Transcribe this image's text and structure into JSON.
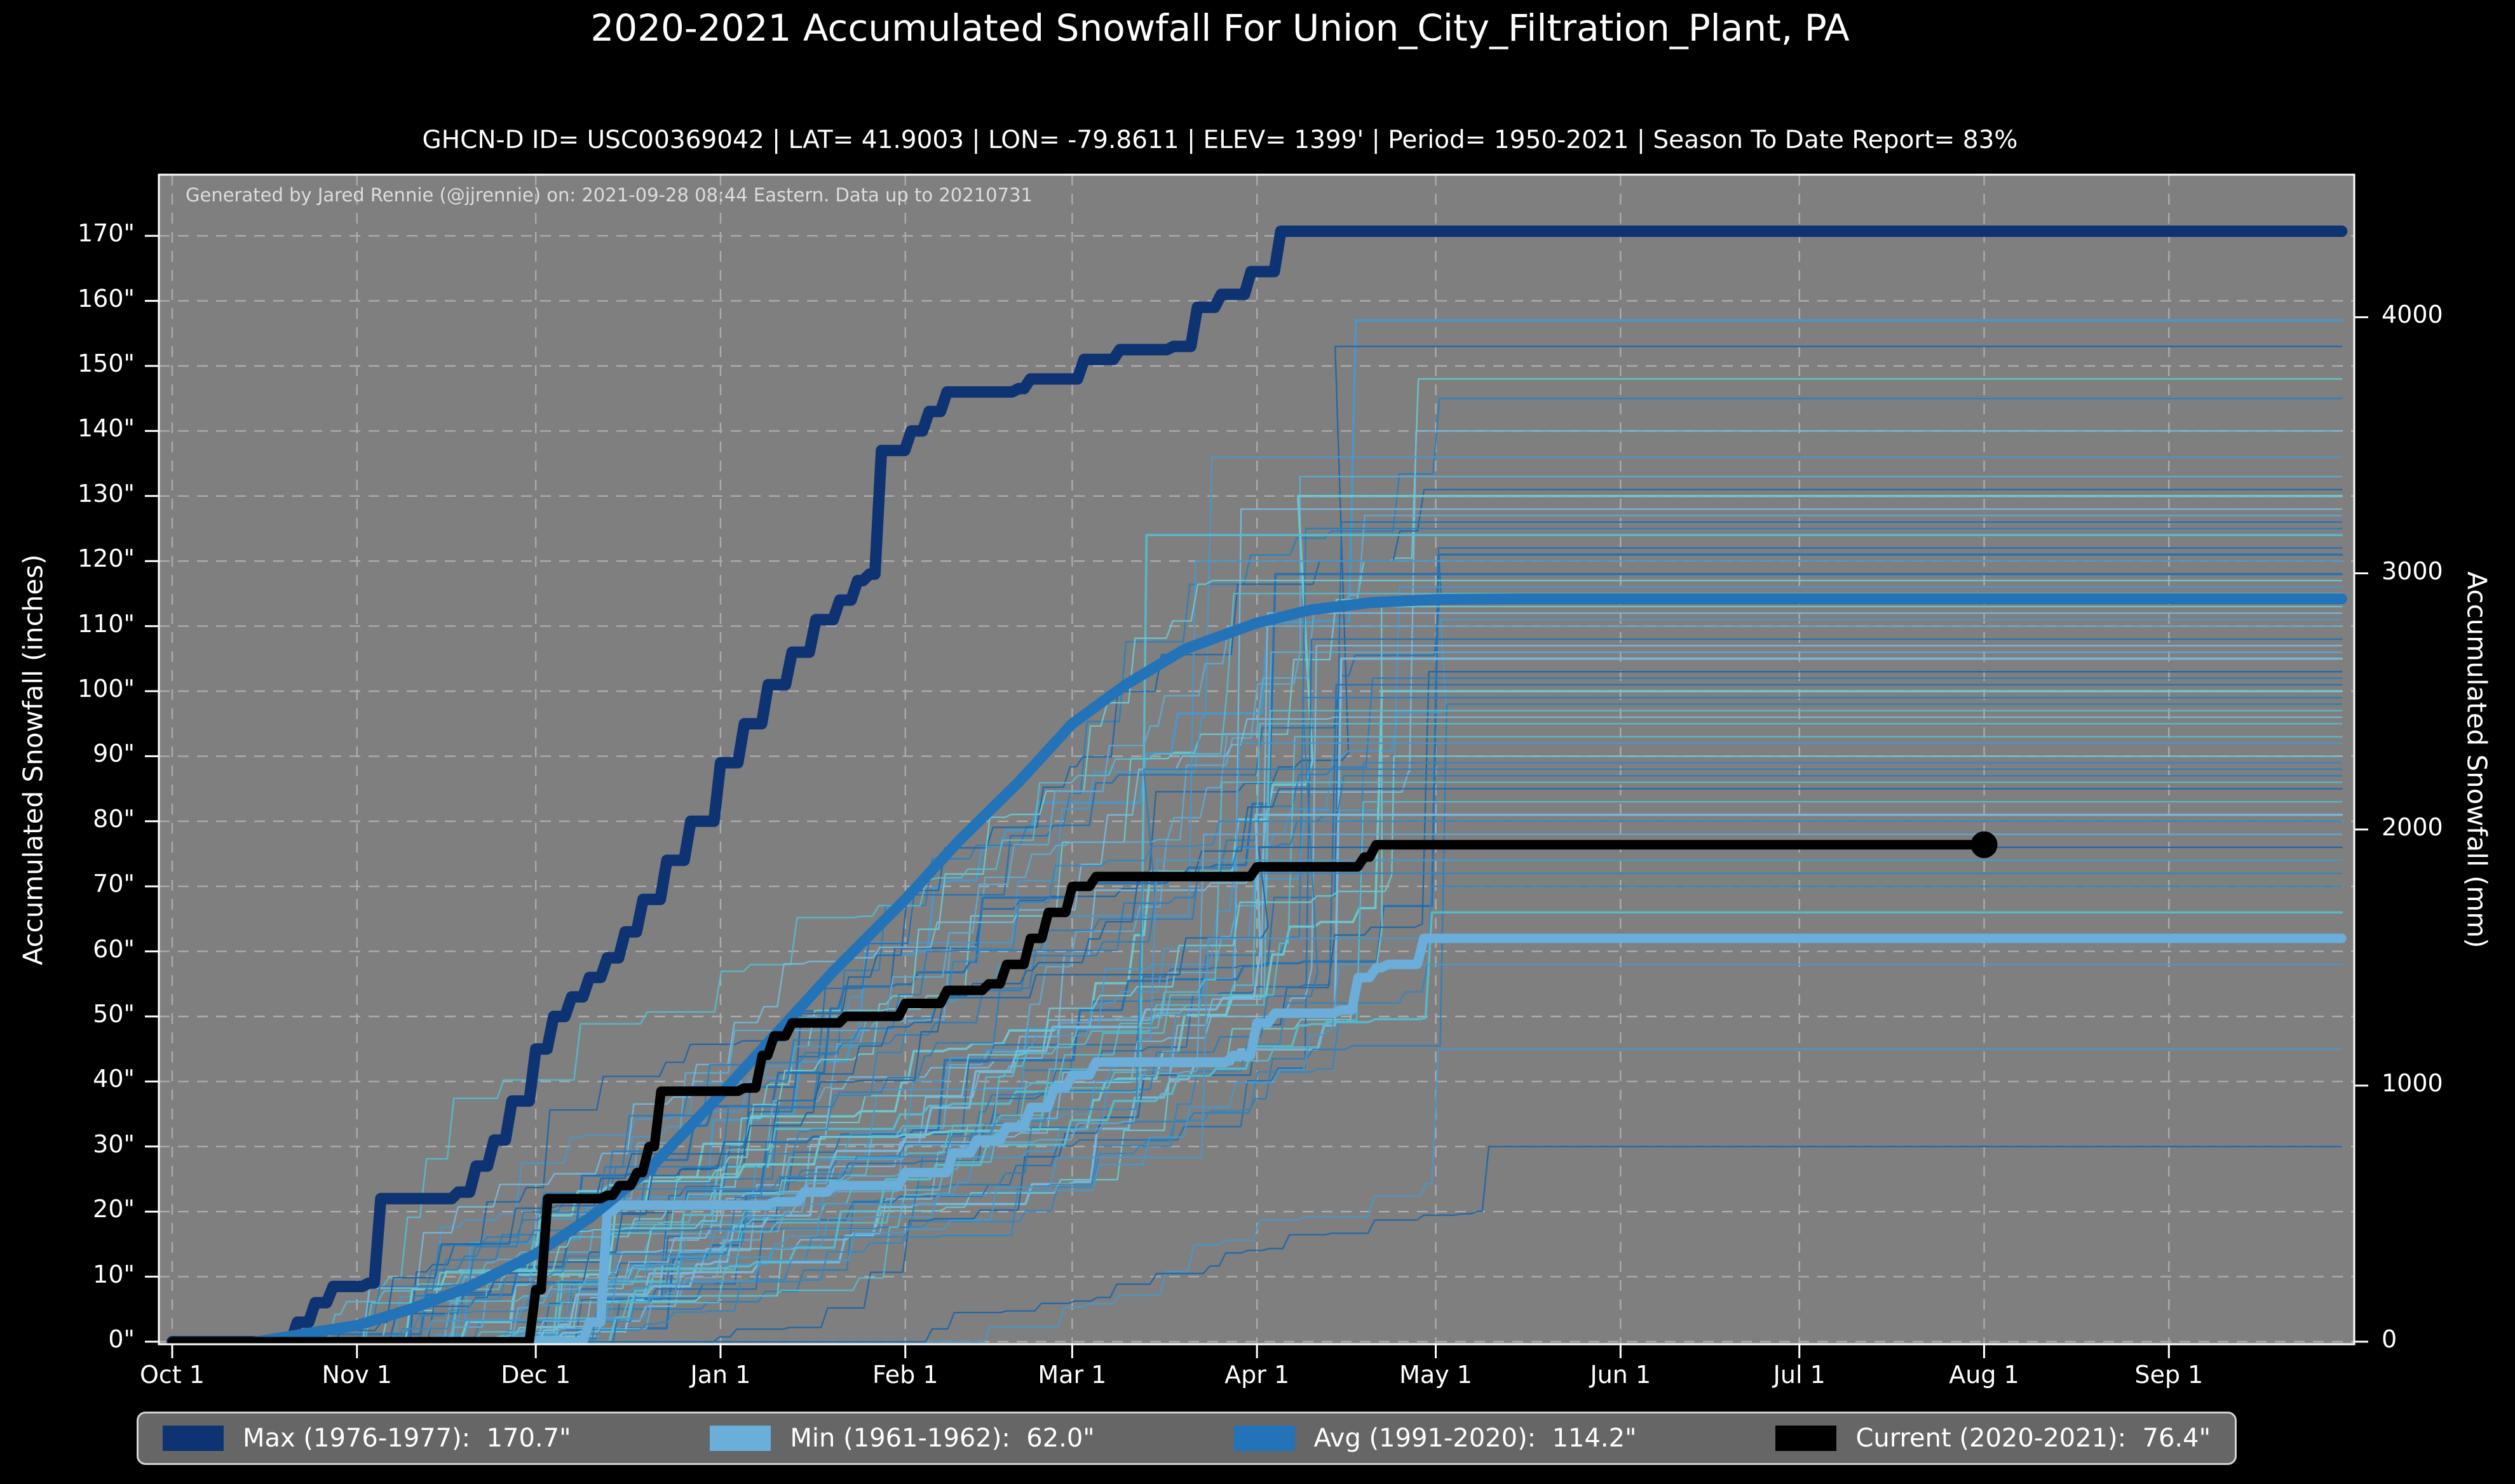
{
  "title": "2020-2021 Accumulated Snowfall For Union_City_Filtration_Plant, PA",
  "subtitle": "GHCN-D ID= USC00369042 | LAT= 41.9003 | LON= -79.8611 | ELEV= 1399' | Period= 1950-2021 | Season To Date Report= 83%",
  "attribution": "Generated by Jared Rennie (@jjrennie) on: 2021-09-28 08:44 Eastern. Data up to 20210731",
  "colors": {
    "figure_background": "#000000",
    "plot_background": "#7f7f7f",
    "grid": "#cfcfcf",
    "spine": "#ffffff",
    "max_line": "#0e3372",
    "min_line": "#6aaed9",
    "avg_line": "#2273b8",
    "current_line": "#000000",
    "legend_background": "#666667"
  },
  "chart_data": {
    "type": "line",
    "title": "2020-2021 Accumulated Snowfall For Union_City_Filtration_Plant, PA",
    "ylabel_left": "Accumulated Snowfall (inches)",
    "ylabel_right": "Accumulated Snowfall (mm)",
    "x_ticks": [
      {
        "label": "Oct 1",
        "day": 0
      },
      {
        "label": "Nov 1",
        "day": 31
      },
      {
        "label": "Dec 1",
        "day": 61
      },
      {
        "label": "Jan 1",
        "day": 92
      },
      {
        "label": "Feb 1",
        "day": 123
      },
      {
        "label": "Mar 1",
        "day": 151
      },
      {
        "label": "Apr 1",
        "day": 182
      },
      {
        "label": "May 1",
        "day": 212
      },
      {
        "label": "Jun 1",
        "day": 243
      },
      {
        "label": "Jul 1",
        "day": 273
      },
      {
        "label": "Aug 1",
        "day": 304
      },
      {
        "label": "Sep 1",
        "day": 335
      }
    ],
    "y_ticks_left": [
      {
        "value": 0,
        "label": "0\""
      },
      {
        "value": 10,
        "label": "10\""
      },
      {
        "value": 20,
        "label": "20\""
      },
      {
        "value": 30,
        "label": "30\""
      },
      {
        "value": 40,
        "label": "40\""
      },
      {
        "value": 50,
        "label": "50\""
      },
      {
        "value": 60,
        "label": "60\""
      },
      {
        "value": 70,
        "label": "70\""
      },
      {
        "value": 80,
        "label": "80\""
      },
      {
        "value": 90,
        "label": "90\""
      },
      {
        "value": 100,
        "label": "100\""
      },
      {
        "value": 110,
        "label": "110\""
      },
      {
        "value": 120,
        "label": "120\""
      },
      {
        "value": 130,
        "label": "130\""
      },
      {
        "value": 140,
        "label": "140\""
      },
      {
        "value": 150,
        "label": "150\""
      },
      {
        "value": 160,
        "label": "160\""
      },
      {
        "value": 170,
        "label": "170\""
      }
    ],
    "y_ticks_right": [
      {
        "value": 0,
        "label": "0"
      },
      {
        "value": 1000,
        "label": "1000"
      },
      {
        "value": 2000,
        "label": "2000"
      },
      {
        "value": 3000,
        "label": "3000"
      },
      {
        "value": 4000,
        "label": "4000"
      }
    ],
    "x_range_days": [
      0,
      365
    ],
    "y_range_inches": [
      0,
      179
    ],
    "grid": "dashed",
    "legend_position": "bottom",
    "legend": [
      {
        "label": "Max (1976-1977):  170.7\"",
        "color": "#0e3372"
      },
      {
        "label": "Min (1961-1962):  62.0\"",
        "color": "#6aaed9"
      },
      {
        "label": "Avg (1991-2020):  114.2\"",
        "color": "#2273b8"
      },
      {
        "label": "Current (2020-2021):  76.4\"",
        "color": "#000000"
      }
    ],
    "series": [
      {
        "name": "Max (1976-1977)",
        "total_inches": 170.7,
        "color": "#0e3372",
        "width": 18,
        "step": true,
        "points": [
          [
            0,
            0
          ],
          [
            19,
            0
          ],
          [
            21,
            3
          ],
          [
            24,
            6
          ],
          [
            27,
            8.5
          ],
          [
            33,
            9
          ],
          [
            35,
            22
          ],
          [
            48,
            23
          ],
          [
            51,
            27
          ],
          [
            54,
            31
          ],
          [
            57,
            37
          ],
          [
            61,
            45
          ],
          [
            64,
            50
          ],
          [
            67,
            53
          ],
          [
            70,
            56
          ],
          [
            73,
            59
          ],
          [
            76,
            63
          ],
          [
            79,
            68
          ],
          [
            83,
            74
          ],
          [
            87,
            80
          ],
          [
            92,
            89
          ],
          [
            96,
            95
          ],
          [
            100,
            101
          ],
          [
            104,
            106
          ],
          [
            108,
            111
          ],
          [
            112,
            114
          ],
          [
            115,
            117
          ],
          [
            117,
            118
          ],
          [
            119,
            137
          ],
          [
            124,
            140
          ],
          [
            127,
            143
          ],
          [
            130,
            146
          ],
          [
            142,
            146.5
          ],
          [
            144,
            148
          ],
          [
            153,
            151
          ],
          [
            159,
            152.5
          ],
          [
            168,
            153
          ],
          [
            172,
            159
          ],
          [
            176,
            161
          ],
          [
            181,
            164.5
          ],
          [
            186,
            170.7
          ],
          [
            364,
            170.7
          ]
        ]
      },
      {
        "name": "Min (1961-1962)",
        "total_inches": 62.0,
        "color": "#6aaed9",
        "width": 15,
        "step": true,
        "points": [
          [
            0,
            0
          ],
          [
            68,
            0
          ],
          [
            70,
            3
          ],
          [
            73,
            20
          ],
          [
            75,
            21
          ],
          [
            101,
            21.5
          ],
          [
            106,
            23
          ],
          [
            111,
            24
          ],
          [
            123,
            26
          ],
          [
            131,
            29
          ],
          [
            135,
            31
          ],
          [
            140,
            33
          ],
          [
            144,
            36
          ],
          [
            148,
            39
          ],
          [
            151,
            41
          ],
          [
            155,
            43
          ],
          [
            178,
            44
          ],
          [
            182,
            49
          ],
          [
            185,
            50.5
          ],
          [
            196,
            51
          ],
          [
            199,
            56
          ],
          [
            202,
            57.5
          ],
          [
            204,
            58
          ],
          [
            210,
            62
          ],
          [
            364,
            62
          ]
        ]
      },
      {
        "name": "Avg (1991-2020)",
        "total_inches": 114.2,
        "color": "#2273b8",
        "width": 17,
        "step": false,
        "points": [
          [
            14,
            0
          ],
          [
            31,
            2.5
          ],
          [
            40,
            5
          ],
          [
            50,
            8.5
          ],
          [
            61,
            13.5
          ],
          [
            70,
            19
          ],
          [
            80,
            26.5
          ],
          [
            92,
            38
          ],
          [
            101,
            47
          ],
          [
            111,
            57
          ],
          [
            123,
            68
          ],
          [
            132,
            77
          ],
          [
            142,
            86
          ],
          [
            151,
            95
          ],
          [
            160,
            101
          ],
          [
            170,
            106.5
          ],
          [
            182,
            110.5
          ],
          [
            191,
            112.5
          ],
          [
            201,
            113.6
          ],
          [
            212,
            114.1
          ],
          [
            226,
            114.2
          ],
          [
            364,
            114.2
          ]
        ]
      },
      {
        "name": "Current (2020-2021)",
        "total_inches": 76.4,
        "color": "#000000",
        "width": 15,
        "step": true,
        "end_dot": true,
        "end_day": 304,
        "points": [
          [
            0,
            0
          ],
          [
            56,
            0
          ],
          [
            61,
            8
          ],
          [
            63,
            22
          ],
          [
            73,
            22.5
          ],
          [
            75,
            24
          ],
          [
            78,
            26
          ],
          [
            80,
            30
          ],
          [
            82,
            38.5
          ],
          [
            96,
            39
          ],
          [
            99,
            44
          ],
          [
            101,
            47
          ],
          [
            104,
            49
          ],
          [
            113,
            50
          ],
          [
            123,
            52
          ],
          [
            130,
            54
          ],
          [
            137,
            55
          ],
          [
            140,
            58
          ],
          [
            144,
            62
          ],
          [
            147,
            66
          ],
          [
            151,
            70
          ],
          [
            155,
            71.5
          ],
          [
            182,
            73
          ],
          [
            200,
            74.5
          ],
          [
            202,
            76.4
          ],
          [
            304,
            76.4
          ]
        ]
      }
    ],
    "background_seasons": {
      "description": "Accumulated snowfall curves for each season 1950-2021, season totals in inches",
      "palette": [
        "#2272b5",
        "#3387c0",
        "#4899cb",
        "#5fabd3",
        "#55bccd",
        "#6cc9d0",
        "#2a7fbc",
        "#77b9dc",
        "#1c67a8"
      ],
      "finals": [
        157,
        153,
        148,
        145,
        140,
        136,
        133,
        131,
        130,
        128,
        127,
        126,
        125,
        124,
        122,
        121,
        120,
        118,
        117,
        116,
        115,
        113,
        112,
        111,
        110,
        108,
        107,
        106,
        105,
        103,
        102,
        101,
        100,
        99,
        98,
        97,
        96,
        95,
        93,
        92,
        90,
        89,
        88,
        87,
        86,
        85,
        83,
        81,
        80,
        78,
        76,
        74,
        72,
        70,
        66,
        62,
        58,
        45,
        30
      ]
    }
  }
}
